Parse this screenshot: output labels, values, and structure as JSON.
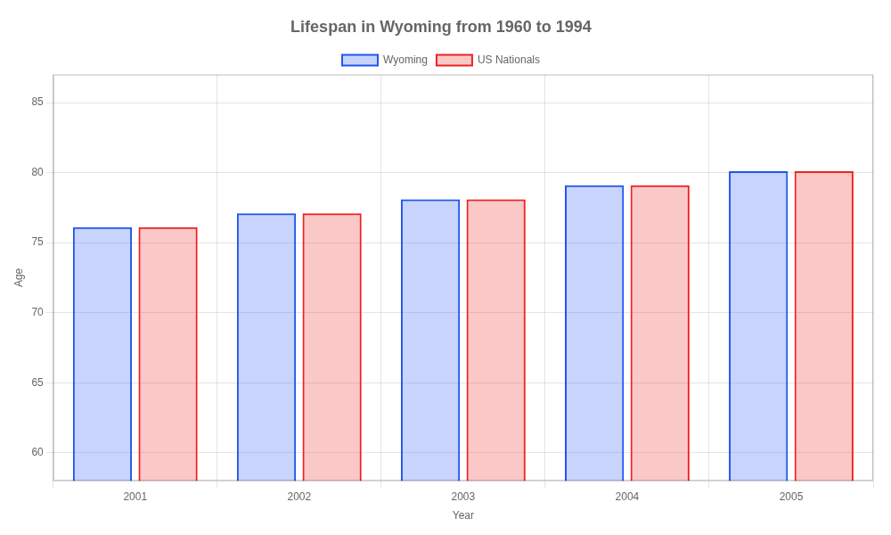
{
  "chart_data": {
    "type": "bar",
    "title": "Lifespan in Wyoming from 1960 to 1994",
    "x_label": "Year",
    "y_label": "Age",
    "categories": [
      "2001",
      "2002",
      "2003",
      "2004",
      "2005"
    ],
    "series": [
      {
        "name": "Wyoming",
        "color": "#2255ee",
        "values": [
          76.1,
          77.1,
          78.1,
          79.1,
          80.1
        ]
      },
      {
        "name": "US Nationals",
        "color": "#ee2222",
        "values": [
          76.1,
          77.1,
          78.1,
          79.1,
          80.1
        ]
      }
    ],
    "ylim": [
      58,
      87
    ],
    "yticks": [
      60,
      65,
      70,
      75,
      80,
      85
    ],
    "grid": true,
    "legend": "top"
  }
}
